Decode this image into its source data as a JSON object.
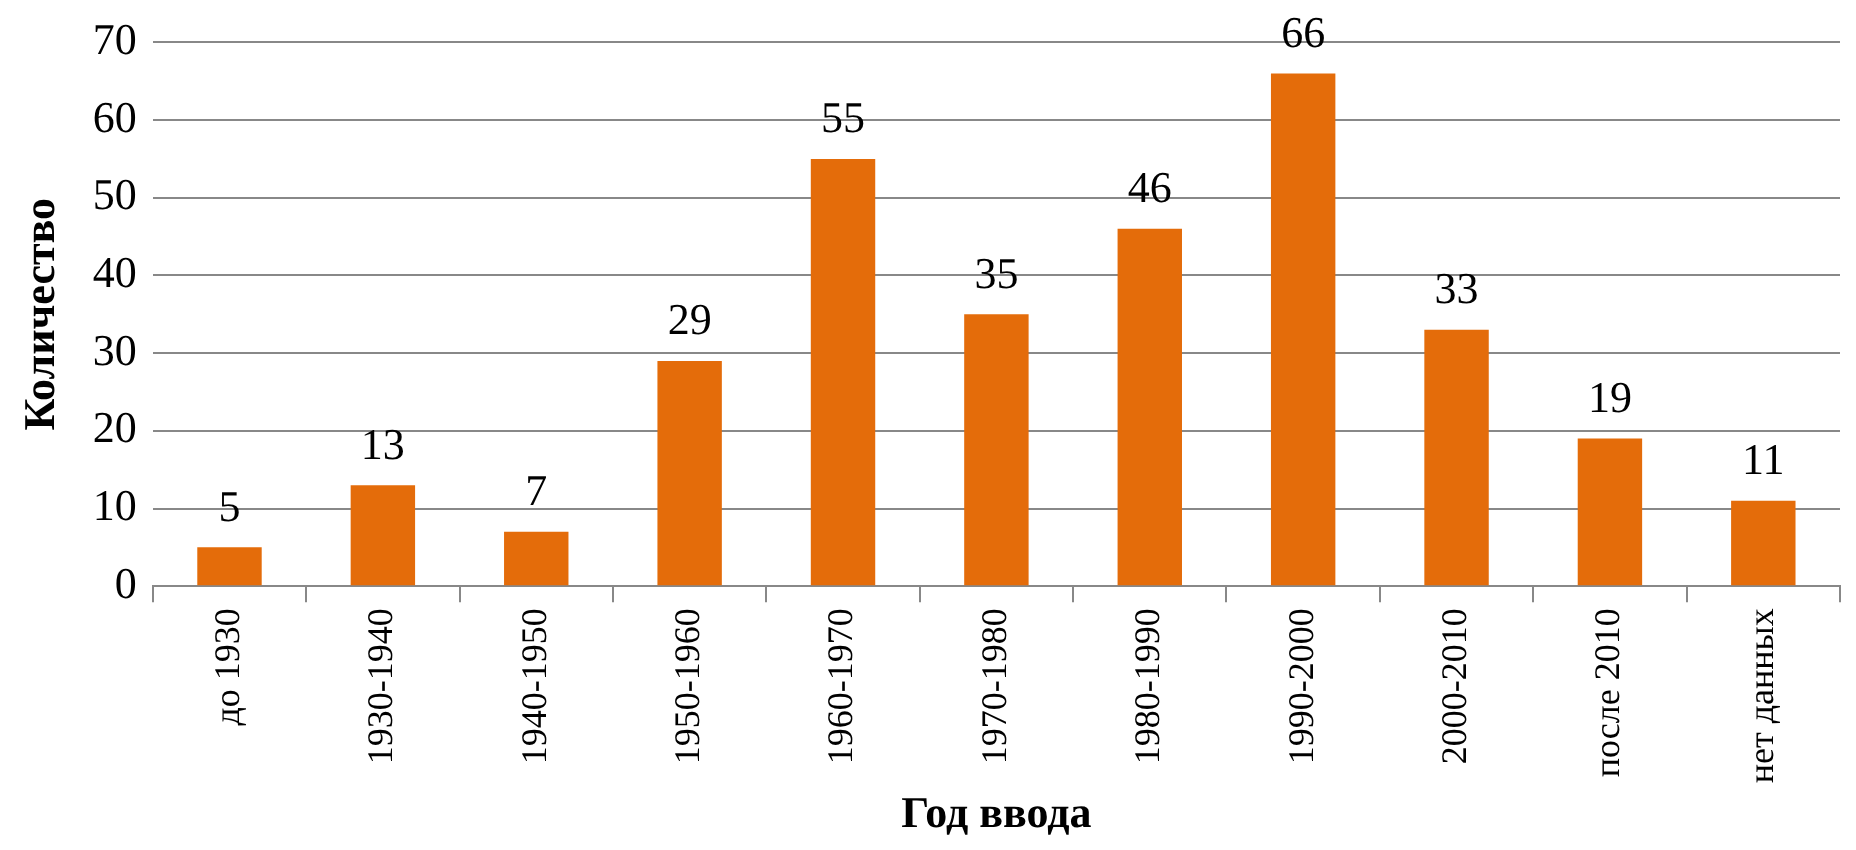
{
  "chart_data": {
    "type": "bar",
    "xlabel": "Год ввода",
    "ylabel": "Количество",
    "categories": [
      "до 1930",
      "1930-1940",
      "1940-1950",
      "1950-1960",
      "1960-1970",
      "1970-1980",
      "1980-1990",
      "1990-2000",
      "2000-2010",
      "после 2010",
      "нет данных"
    ],
    "values": [
      5,
      13,
      7,
      29,
      55,
      35,
      46,
      66,
      33,
      19,
      11
    ],
    "color": "#e46c0a",
    "ylim": [
      0,
      70
    ],
    "yticks": [
      0,
      10,
      20,
      30,
      40,
      50,
      60,
      70
    ],
    "grid": "y",
    "data_labels": true
  }
}
